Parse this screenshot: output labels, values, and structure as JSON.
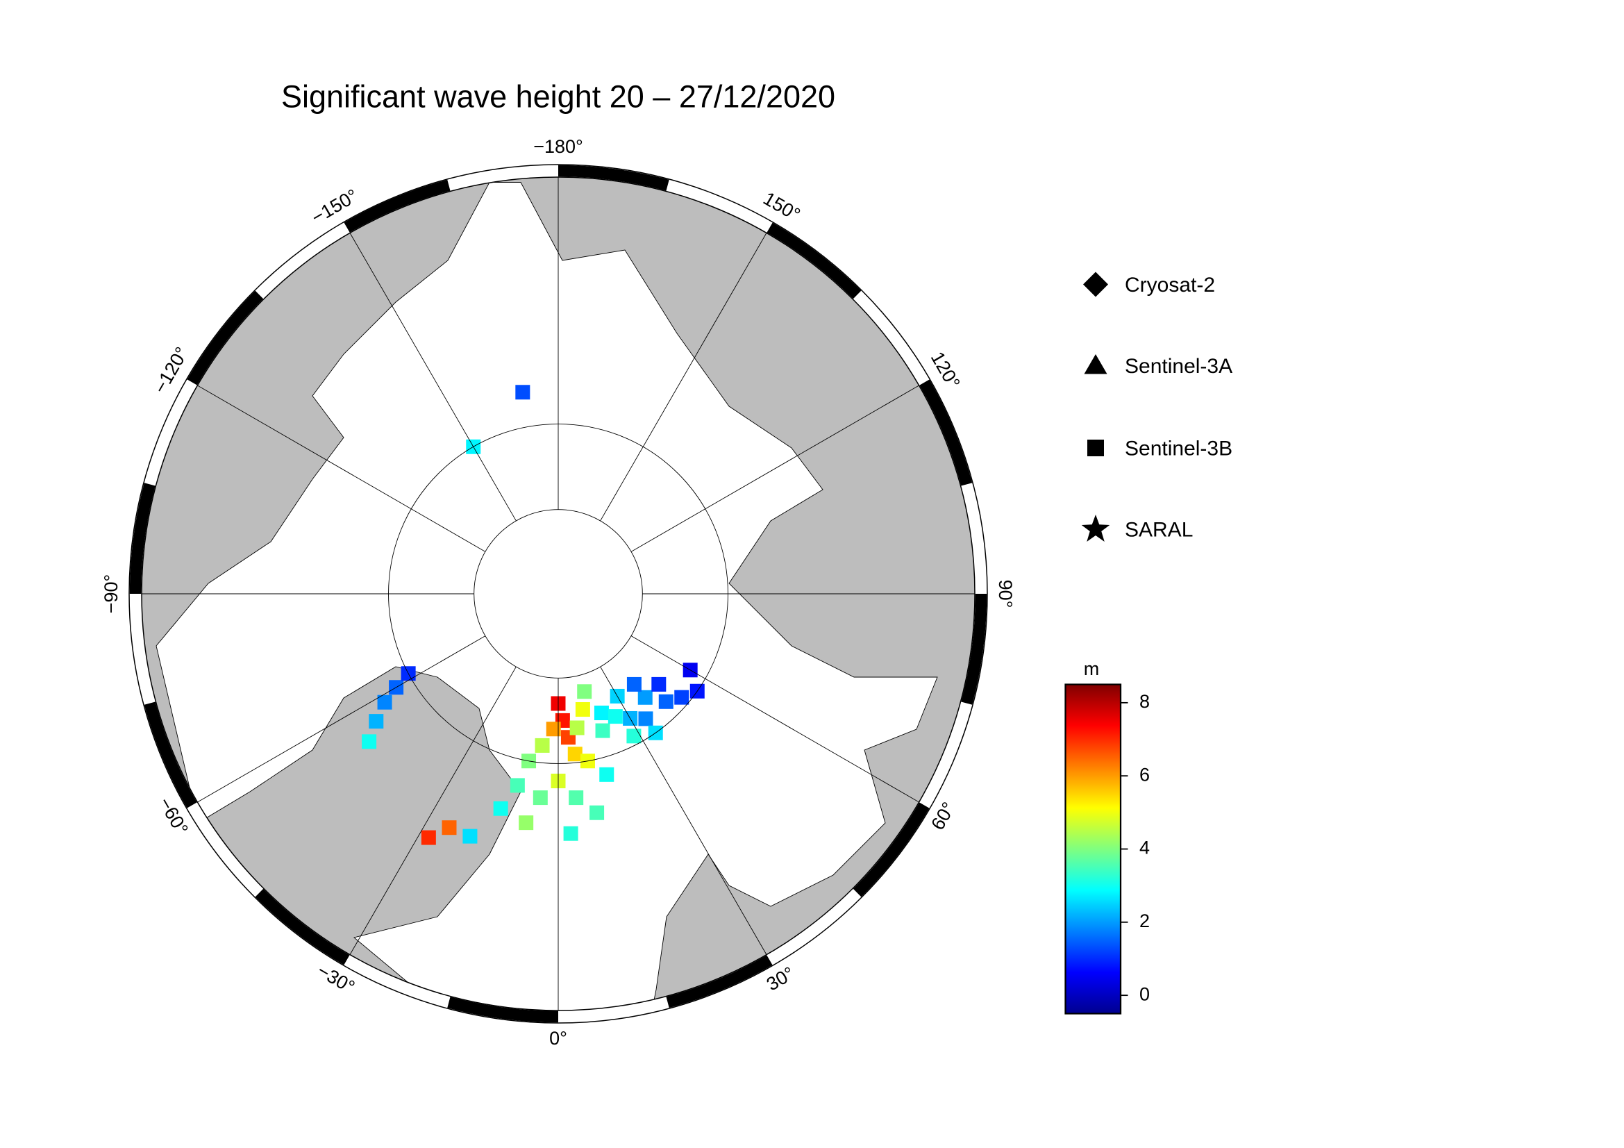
{
  "title": "Significant wave height 20 – 27/12/2020",
  "map": {
    "lon_ticks": [
      {
        "value": -180,
        "label": "−180°"
      },
      {
        "value": -150,
        "label": "−150°"
      },
      {
        "value": -120,
        "label": "−120°"
      },
      {
        "value": -90,
        "label": "−90°"
      },
      {
        "value": -60,
        "label": "−60°"
      },
      {
        "value": -30,
        "label": "−30°"
      },
      {
        "value": 0,
        "label": "0°"
      },
      {
        "value": 30,
        "label": "30°"
      },
      {
        "value": 60,
        "label": "60°"
      },
      {
        "value": 90,
        "label": "90°"
      },
      {
        "value": 120,
        "label": "120°"
      },
      {
        "value": 150,
        "label": "150°"
      }
    ],
    "observations": [
      {
        "lon": 0,
        "lat": 77,
        "swh": 7.5
      },
      {
        "lon": 2,
        "lat": 75,
        "swh": 7.2
      },
      {
        "lon": 4,
        "lat": 73,
        "swh": 6.8
      },
      {
        "lon": -2,
        "lat": 74,
        "swh": 6
      },
      {
        "lon": 6,
        "lat": 71,
        "swh": 5.5
      },
      {
        "lon": -6,
        "lat": 72,
        "swh": 4.5
      },
      {
        "lon": 10,
        "lat": 70,
        "swh": 5
      },
      {
        "lon": 8,
        "lat": 74,
        "swh": 4.5
      },
      {
        "lon": 12,
        "lat": 76,
        "swh": 5
      },
      {
        "lon": 15,
        "lat": 78,
        "swh": 4
      },
      {
        "lon": -10,
        "lat": 70,
        "swh": 4
      },
      {
        "lon": -12,
        "lat": 67,
        "swh": 3.5
      },
      {
        "lon": -5,
        "lat": 66,
        "swh": 3.8
      },
      {
        "lon": 0,
        "lat": 68,
        "swh": 4.8
      },
      {
        "lon": 5,
        "lat": 66,
        "swh": 3.6
      },
      {
        "lon": -15,
        "lat": 64,
        "swh": 3
      },
      {
        "lon": -8,
        "lat": 63,
        "swh": 4.2
      },
      {
        "lon": 3,
        "lat": 62,
        "swh": 3.2
      },
      {
        "lon": 10,
        "lat": 64,
        "swh": 3.5
      },
      {
        "lon": 15,
        "lat": 68,
        "swh": 3
      },
      {
        "lon": 18,
        "lat": 73,
        "swh": 3.4
      },
      {
        "lon": 20,
        "lat": 75,
        "swh": 2.8
      },
      {
        "lon": -20,
        "lat": 60,
        "swh": 2.6
      },
      {
        "lon": -28,
        "lat": 58,
        "swh": 7
      },
      {
        "lon": -25,
        "lat": 60,
        "swh": 6.5
      },
      {
        "lon": 30,
        "lat": 73,
        "swh": 2.2
      },
      {
        "lon": 35,
        "lat": 72,
        "swh": 1.8
      },
      {
        "lon": 40,
        "lat": 74,
        "swh": 2
      },
      {
        "lon": 45,
        "lat": 72,
        "swh": 1.5
      },
      {
        "lon": 50,
        "lat": 71,
        "swh": 1.2
      },
      {
        "lon": 25,
        "lat": 74,
        "swh": 3
      },
      {
        "lon": 30,
        "lat": 76,
        "swh": 2.5
      },
      {
        "lon": 40,
        "lat": 76,
        "swh": 1.5
      },
      {
        "lon": 48,
        "lat": 74,
        "swh": 1
      },
      {
        "lon": 55,
        "lat": 70,
        "swh": 0.8
      },
      {
        "lon": 60,
        "lat": 72,
        "swh": 0.5
      },
      {
        "lon": 35,
        "lat": 70,
        "swh": 2.6
      },
      {
        "lon": 28,
        "lat": 71,
        "swh": 3.2
      },
      {
        "lon": -60,
        "lat": 68,
        "swh": 1.5
      },
      {
        "lon": -58,
        "lat": 66,
        "swh": 1.8
      },
      {
        "lon": -62,
        "lat": 70,
        "swh": 1
      },
      {
        "lon": -55,
        "lat": 64,
        "swh": 2.2
      },
      {
        "lon": -52,
        "lat": 62,
        "swh": 3
      },
      {
        "lon": -170,
        "lat": 66,
        "swh": 1.3
      },
      {
        "lon": -150,
        "lat": 70,
        "swh": 2.8
      }
    ]
  },
  "legend": {
    "items": [
      "Cryosat-2",
      "Sentinel-3A",
      "Sentinel-3B",
      "SARAL"
    ]
  },
  "colorbar": {
    "label": "m",
    "lim": [
      -0.5,
      8.5
    ],
    "ticks": [
      0,
      2,
      4,
      6,
      8
    ]
  }
}
